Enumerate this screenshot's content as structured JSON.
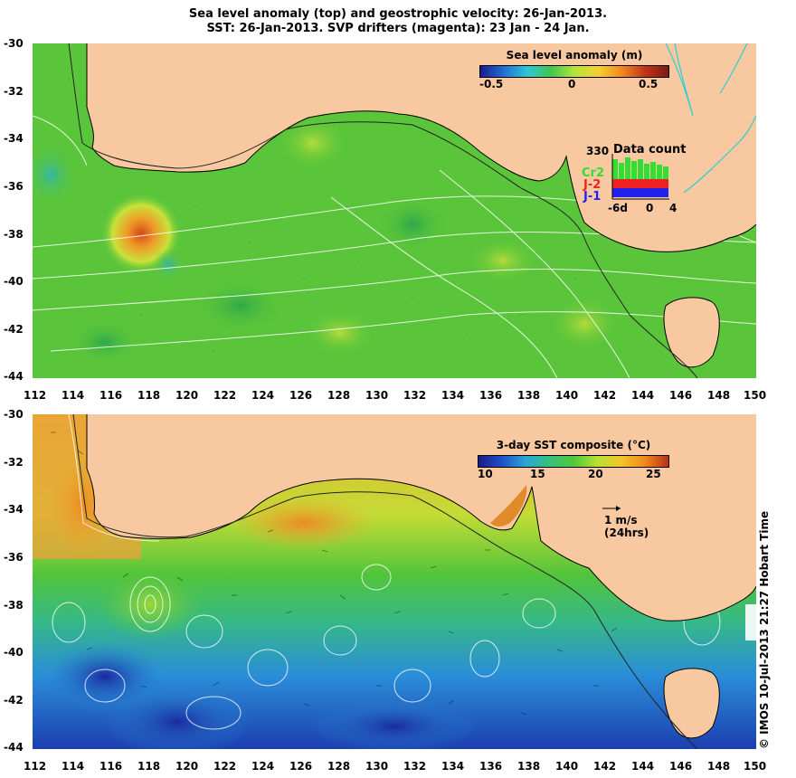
{
  "header": {
    "line1": "Sea level anomaly (top) and geostrophic velocity: 26-Jan-2013.",
    "line2": "SST: 26-Jan-2013. SVP drifters (magenta): 23 Jan - 24 Jan."
  },
  "axes": {
    "lat_ticks": [
      "-30",
      "-32",
      "-34",
      "-36",
      "-38",
      "-40",
      "-42",
      "-44"
    ],
    "lon_ticks": [
      "112",
      "114",
      "116",
      "118",
      "120",
      "122",
      "124",
      "126",
      "128",
      "130",
      "132",
      "134",
      "136",
      "138",
      "140",
      "142",
      "144",
      "146",
      "148",
      "150"
    ]
  },
  "top_panel": {
    "colorbar_title": "Sea level anomaly (m)",
    "colorbar_ticks": [
      "-0.5",
      "0",
      "0.5"
    ],
    "colorbar_colors": [
      "#1b1b8c",
      "#1f6fd6",
      "#2fc6d8",
      "#3ec84a",
      "#b6e23a",
      "#f4d232",
      "#f08a1e",
      "#c2341a",
      "#7a1a10"
    ],
    "data_count": {
      "title": "Data count",
      "max_label": "330",
      "labels": [
        "Cr2",
        "J-2",
        "J-1"
      ],
      "label_colors": [
        "#33dd33",
        "#ee2222",
        "#2222ee"
      ],
      "x_ticks": [
        "-6d",
        "0",
        "4"
      ]
    }
  },
  "bottom_panel": {
    "colorbar_title": "3-day SST composite (°C)",
    "colorbar_ticks": [
      "10",
      "15",
      "20",
      "25"
    ],
    "colorbar_colors": [
      "#1b1b8c",
      "#1f52c8",
      "#2aa6d8",
      "#36c27a",
      "#4ec83a",
      "#b8e030",
      "#f2c62a",
      "#ef8a1e",
      "#b83018"
    ],
    "velocity_scale": {
      "line1": "1 m/s",
      "line2": "(24hrs)"
    }
  },
  "colors": {
    "land": "#f8c9a0",
    "ocean_top": "#5ac53a",
    "ocean_bottom": "#3fae3a",
    "contour": "#ffffff",
    "coast": "#000000",
    "lake": "#2ad0d0"
  },
  "footer": {
    "credit": "© IMOS 10-Jul-2013 21:27 Hobart Time"
  }
}
